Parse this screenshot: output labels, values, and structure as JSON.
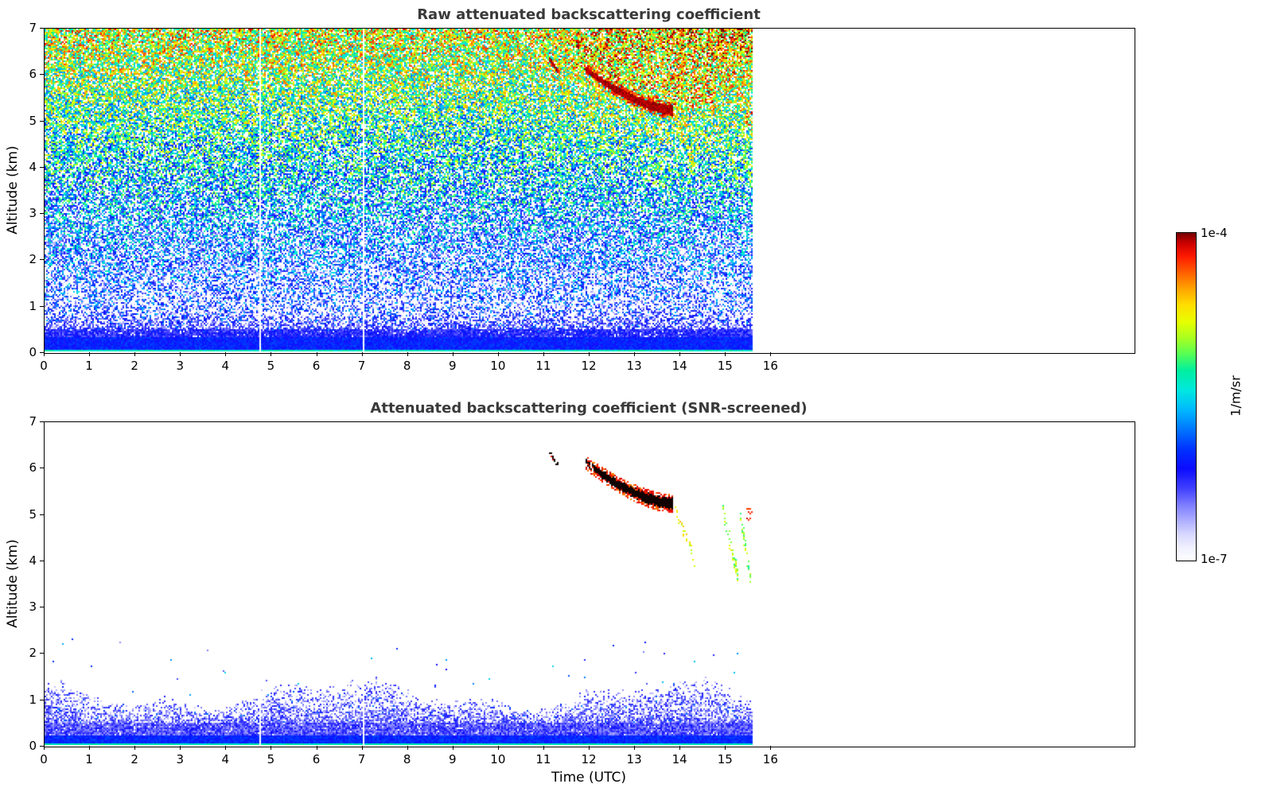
{
  "figure": {
    "background": "#ffffff"
  },
  "colorbar": {
    "unit_label": "1/m/sr",
    "max_label": "1e-4",
    "min_label": "1e-7",
    "stops": [
      [
        0.0,
        "#ffffff"
      ],
      [
        0.04,
        "#f0f0ff"
      ],
      [
        0.08,
        "#d8d8ff"
      ],
      [
        0.12,
        "#b0b0ff"
      ],
      [
        0.17,
        "#7d7dff"
      ],
      [
        0.22,
        "#4040ff"
      ],
      [
        0.28,
        "#0d0dff"
      ],
      [
        0.34,
        "#0033ff"
      ],
      [
        0.4,
        "#0077ff"
      ],
      [
        0.46,
        "#00baff"
      ],
      [
        0.52,
        "#00e8e0"
      ],
      [
        0.58,
        "#00f0a0"
      ],
      [
        0.63,
        "#55ff55"
      ],
      [
        0.68,
        "#aaff22"
      ],
      [
        0.73,
        "#e8ff00"
      ],
      [
        0.78,
        "#ffe000"
      ],
      [
        0.83,
        "#ffa500"
      ],
      [
        0.88,
        "#ff6000"
      ],
      [
        0.93,
        "#ff1a00"
      ],
      [
        0.97,
        "#cc0000"
      ],
      [
        1.0,
        "#780000"
      ]
    ]
  },
  "shared_features": {
    "data_end_time": 15.6,
    "gap_times": [
      4.75,
      7.03
    ],
    "main_cloud": {
      "t_start": 11.93,
      "t_end": 13.85,
      "alt_start": 6.12,
      "alt_end": 5.23,
      "curve_power": 1.6,
      "thickness_start_km": 0.12,
      "thickness_end_km": 0.22
    },
    "small_cloud": {
      "t_start": 11.12,
      "t_end": 11.33,
      "alt_start": 6.36,
      "alt_end": 6.06,
      "thickness_km": 0.1
    },
    "virga_streaks": [
      {
        "t0": 12.12,
        "a0": 5.9,
        "t1": 12.4,
        "a1": 4.85,
        "value": 0.8,
        "half_width_km": 0.18,
        "density": 0.5,
        "in_screened": false
      },
      {
        "t0": 13.05,
        "a0": 5.5,
        "t1": 13.3,
        "a1": 4.9,
        "value": 0.78,
        "half_width_km": 0.15,
        "density": 0.35,
        "in_screened": false
      },
      {
        "t0": 13.9,
        "a0": 5.15,
        "t1": 14.35,
        "a1": 3.95,
        "value": 0.76,
        "half_width_km": 0.2,
        "density": 0.5,
        "in_screened": true
      },
      {
        "t0": 14.45,
        "a0": 5.0,
        "t1": 14.72,
        "a1": 4.05,
        "value": 0.72,
        "half_width_km": 0.15,
        "density": 0.4,
        "in_screened": false
      },
      {
        "t0": 14.95,
        "a0": 5.15,
        "t1": 15.3,
        "a1": 3.6,
        "value": 0.68,
        "half_width_km": 0.22,
        "density": 0.6,
        "in_screened": true
      },
      {
        "t0": 15.32,
        "a0": 5.1,
        "t1": 15.58,
        "a1": 3.55,
        "value": 0.66,
        "half_width_km": 0.24,
        "density": 0.7,
        "in_screened": true
      }
    ],
    "red_spot": {
      "t0": 15.46,
      "t1": 15.6,
      "alt0": 4.85,
      "alt1": 5.2
    },
    "boundary_layer": {
      "cyan_line_top_km": 0.05,
      "solid_blue_top_km": 0.32,
      "raw_speckle_top_km": 0.48,
      "screened_speckle_top_km": 1.4
    }
  },
  "chart_data": [
    {
      "type": "heatmap",
      "variant": "raw",
      "title": "Raw attenuated backscattering coefficient",
      "xlabel": "",
      "ylabel": "Altitude (km)",
      "xlim": [
        0,
        24
      ],
      "ylim": [
        0,
        7
      ],
      "xticks": [
        0,
        1,
        2,
        3,
        4,
        5,
        6,
        7,
        8,
        9,
        10,
        11,
        12,
        13,
        14,
        15,
        16
      ],
      "yticks": [
        0,
        1,
        2,
        3,
        4,
        5,
        6,
        7
      ],
      "value_min": "1e-7",
      "value_max": "1e-4",
      "units": "1/m/sr",
      "grid": false,
      "seed": 1337,
      "noise": {
        "base": 0.155,
        "alt_slope": 0.082,
        "amplitude": 0.5,
        "white_frac_low": 0.52,
        "white_frac_slope": 0.055
      }
    },
    {
      "type": "heatmap",
      "variant": "screened",
      "title": "Attenuated backscattering coefficient (SNR-screened)",
      "xlabel": "Time (UTC)",
      "ylabel": "Altitude (km)",
      "xlim": [
        0,
        24
      ],
      "ylim": [
        0,
        7
      ],
      "xticks": [
        0,
        1,
        2,
        3,
        4,
        5,
        6,
        7,
        8,
        9,
        10,
        11,
        12,
        13,
        14,
        15,
        16
      ],
      "yticks": [
        0,
        1,
        2,
        3,
        4,
        5,
        6,
        7
      ],
      "value_min": "1e-7",
      "value_max": "1e-4",
      "units": "1/m/sr",
      "grid": false,
      "seed": 904
    }
  ]
}
